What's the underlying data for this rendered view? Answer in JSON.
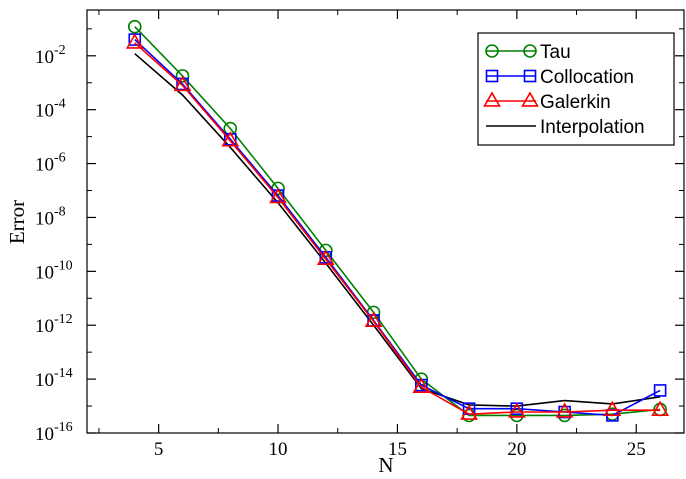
{
  "chart_data": {
    "type": "line",
    "xlabel": "N",
    "ylabel": "Error",
    "xlim": [
      2,
      27
    ],
    "ylim_log10": [
      -16,
      -0.3
    ],
    "y_scale": "log",
    "grid": false,
    "legend_placement": "top-right",
    "x_ticks": [
      5,
      10,
      15,
      20,
      25
    ],
    "y_ticks": [
      {
        "exp": -2,
        "base": "10",
        "sup": "-2"
      },
      {
        "exp": -4,
        "base": "10",
        "sup": "-4"
      },
      {
        "exp": -6,
        "base": "10",
        "sup": "-6"
      },
      {
        "exp": -8,
        "base": "10",
        "sup": "-8"
      },
      {
        "exp": -10,
        "base": "10",
        "sup": "-10"
      },
      {
        "exp": -12,
        "base": "10",
        "sup": "-12"
      },
      {
        "exp": -14,
        "base": "10",
        "sup": "-14"
      },
      {
        "exp": -16,
        "base": "10",
        "sup": "-16"
      }
    ],
    "series": [
      {
        "name": "Tau",
        "color": "#008000",
        "marker": "circle",
        "x": [
          4,
          6,
          8,
          10,
          12,
          14,
          16,
          18,
          20,
          22,
          24,
          26
        ],
        "y": [
          0.12,
          0.0018,
          2e-05,
          1.2e-07,
          6e-10,
          3e-12,
          1e-14,
          4.5e-16,
          4.5e-16,
          4.5e-16,
          5e-16,
          7.5e-16
        ]
      },
      {
        "name": "Collocation",
        "color": "#0000ff",
        "marker": "square",
        "x": [
          4,
          6,
          8,
          10,
          12,
          14,
          16,
          18,
          20,
          22,
          24,
          26
        ],
        "y": [
          0.04,
          0.0009,
          8e-06,
          6.5e-08,
          3.3e-10,
          1.5e-12,
          6e-15,
          8e-16,
          8e-16,
          6e-16,
          4.5e-16,
          3.8e-15
        ]
      },
      {
        "name": "Galerkin",
        "color": "#ff0000",
        "marker": "triangle",
        "x": [
          4,
          6,
          8,
          10,
          12,
          14,
          16,
          18,
          20,
          22,
          24,
          26
        ],
        "y": [
          0.03,
          0.0008,
          7e-06,
          5.5e-08,
          2.8e-10,
          1.4e-12,
          5e-15,
          5e-16,
          6e-16,
          6e-16,
          7e-16,
          7e-16
        ]
      },
      {
        "name": "Interpolation",
        "color": "#000000",
        "marker": "none",
        "x": [
          4,
          6,
          8,
          10,
          12,
          14,
          16,
          18,
          20,
          22,
          24,
          26
        ],
        "y": [
          0.012,
          0.00035,
          4e-06,
          3.5e-08,
          2e-10,
          1e-12,
          4.5e-15,
          1.1e-15,
          1e-15,
          1.6e-15,
          1.2e-15,
          2.2e-15
        ]
      }
    ]
  }
}
